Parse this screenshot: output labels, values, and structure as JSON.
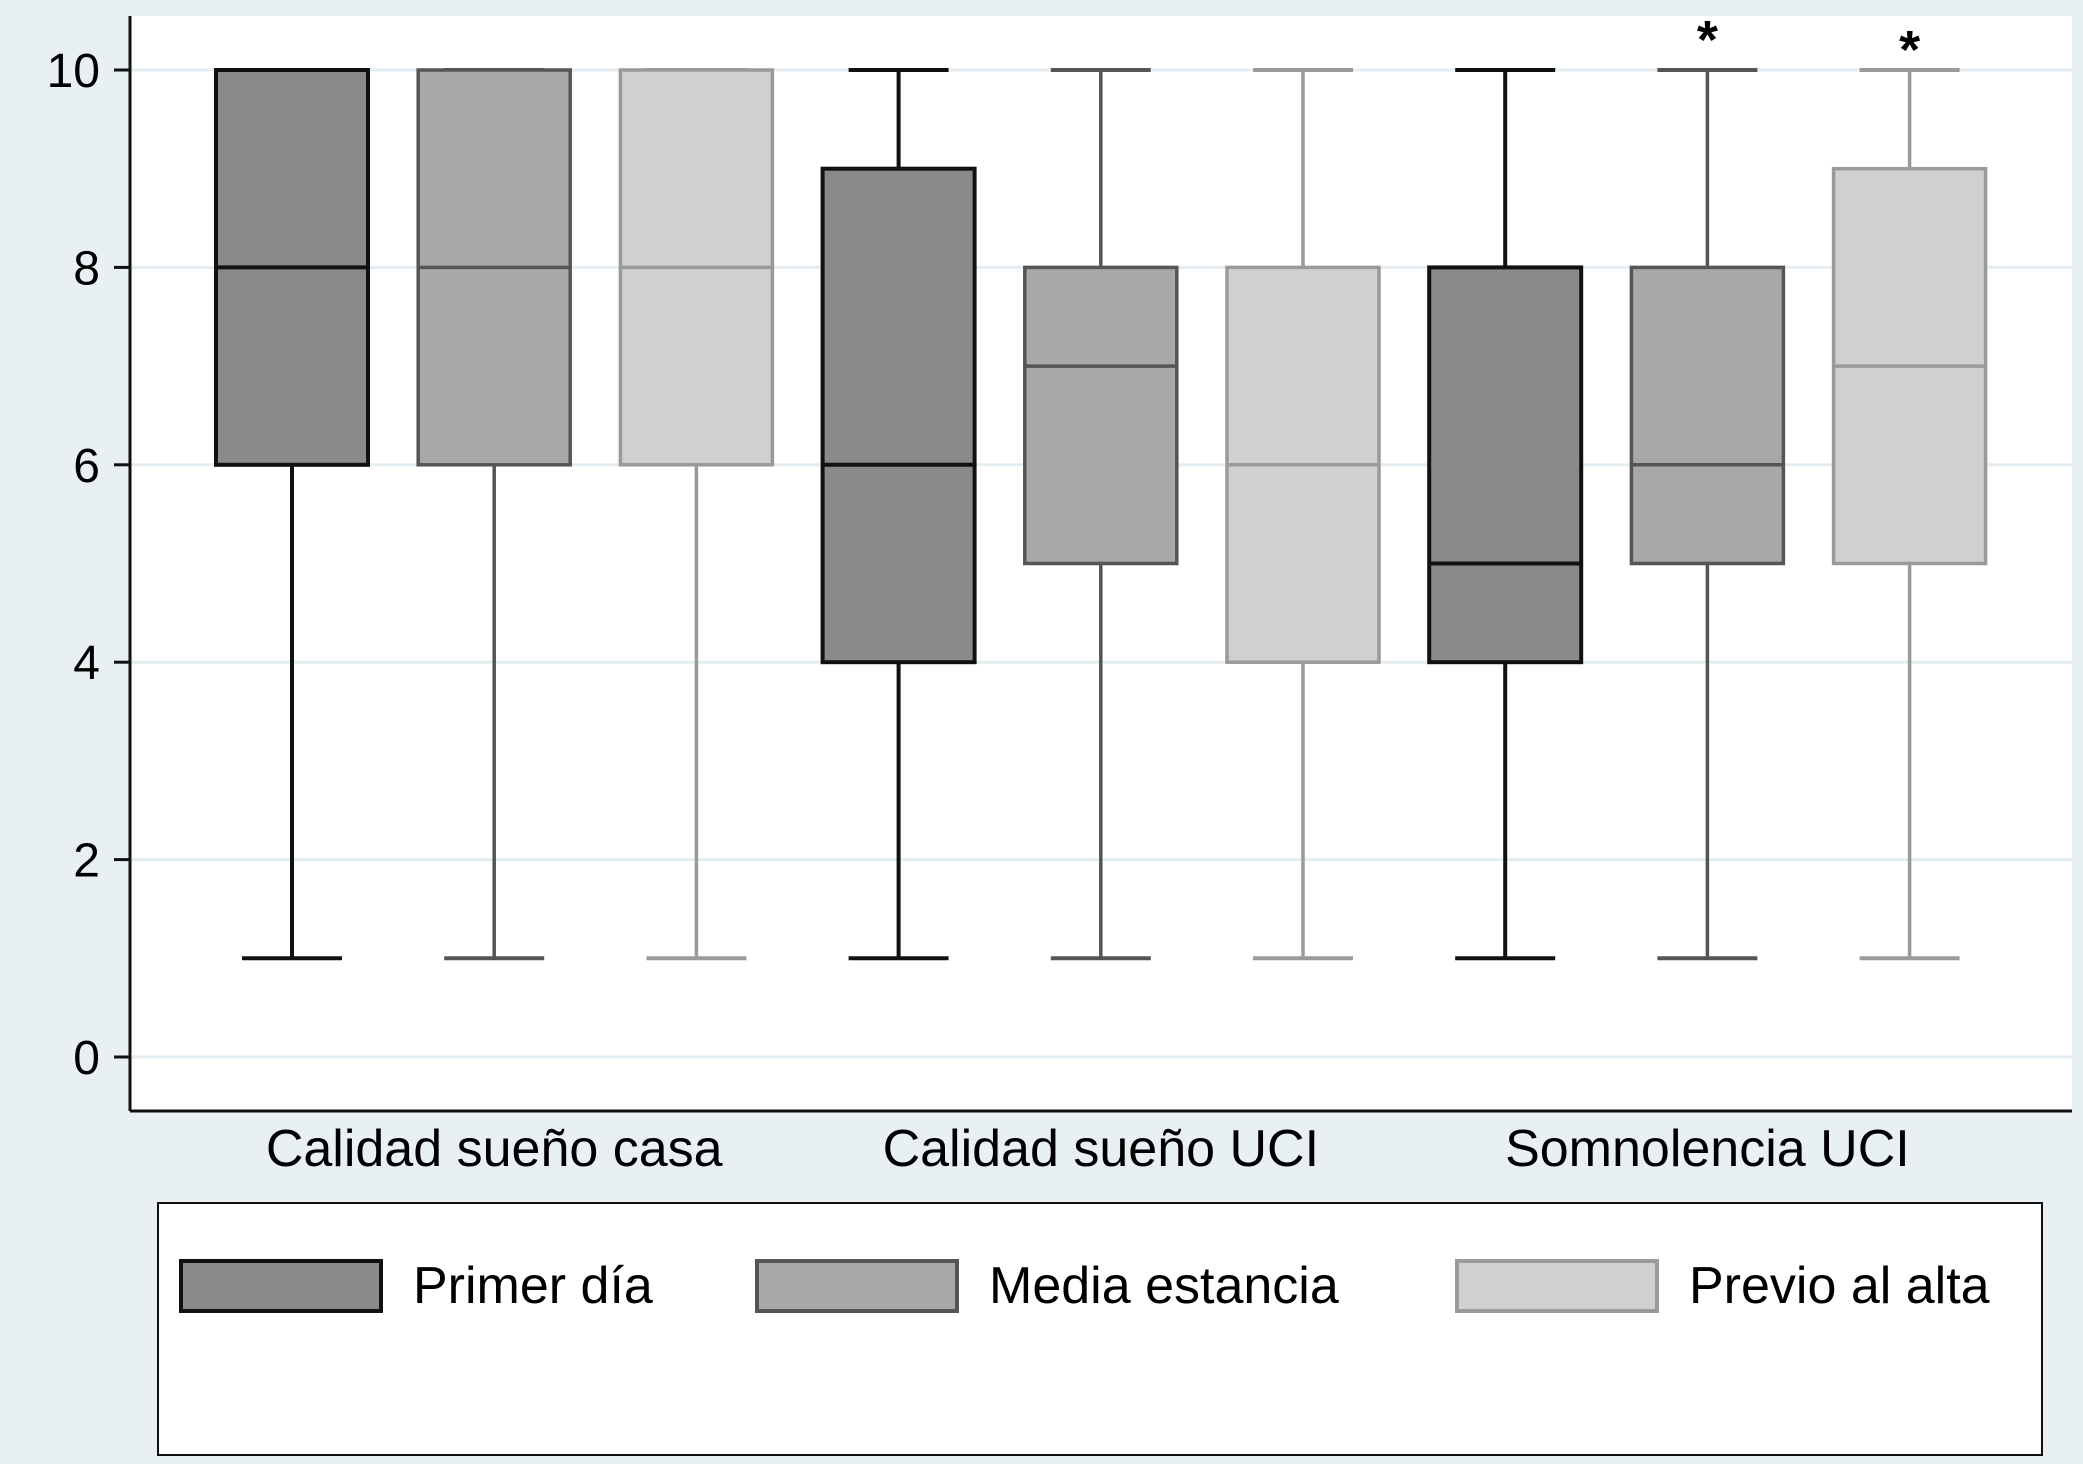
{
  "chart_data": {
    "type": "boxplot",
    "title": "",
    "xlabel": "",
    "ylabel": "",
    "ylim": [
      0,
      10
    ],
    "yticks": [
      0,
      2,
      4,
      6,
      8,
      10
    ],
    "grid": true,
    "legend_position": "bottom",
    "categories": [
      "Calidad sueño casa",
      "Calidad sueño UCI",
      "Somnolencia UCI"
    ],
    "series": [
      {
        "name": "Primer día",
        "fill": "#8a8a8a",
        "stroke": "#111111",
        "boxes": [
          {
            "min": 1,
            "q1": 6,
            "median": 8,
            "q3": 10,
            "max": 10
          },
          {
            "min": 1,
            "q1": 4,
            "median": 6,
            "q3": 9,
            "max": 10
          },
          {
            "min": 1,
            "q1": 4,
            "median": 5,
            "q3": 8,
            "max": 10
          }
        ]
      },
      {
        "name": "Media estancia",
        "fill": "#a8a8a8",
        "stroke": "#555555",
        "boxes": [
          {
            "min": 1,
            "q1": 6,
            "median": 8,
            "q3": 10,
            "max": 10
          },
          {
            "min": 1,
            "q1": 5,
            "median": 7,
            "q3": 8,
            "max": 10
          },
          {
            "min": 1,
            "q1": 5,
            "median": 6,
            "q3": 8,
            "max": 10,
            "annotation": "*"
          }
        ]
      },
      {
        "name": "Previo al alta",
        "fill": "#d0d0d0",
        "stroke": "#9a9a9a",
        "boxes": [
          {
            "min": 1,
            "q1": 6,
            "median": 8,
            "q3": 10,
            "max": 10
          },
          {
            "min": 1,
            "q1": 4,
            "median": 6,
            "q3": 8,
            "max": 10
          },
          {
            "min": 1,
            "q1": 5,
            "median": 7,
            "q3": 9,
            "max": 10,
            "annotation": "*"
          }
        ]
      }
    ],
    "annotations": [
      {
        "text": "*",
        "category": "Somnolencia UCI",
        "series": "Media estancia"
      },
      {
        "text": "*",
        "category": "Somnolencia UCI",
        "series": "Previo al alta"
      }
    ]
  },
  "legend": {
    "items": [
      {
        "label": "Primer día"
      },
      {
        "label": "Media estancia"
      },
      {
        "label": "Previo al alta"
      }
    ]
  }
}
